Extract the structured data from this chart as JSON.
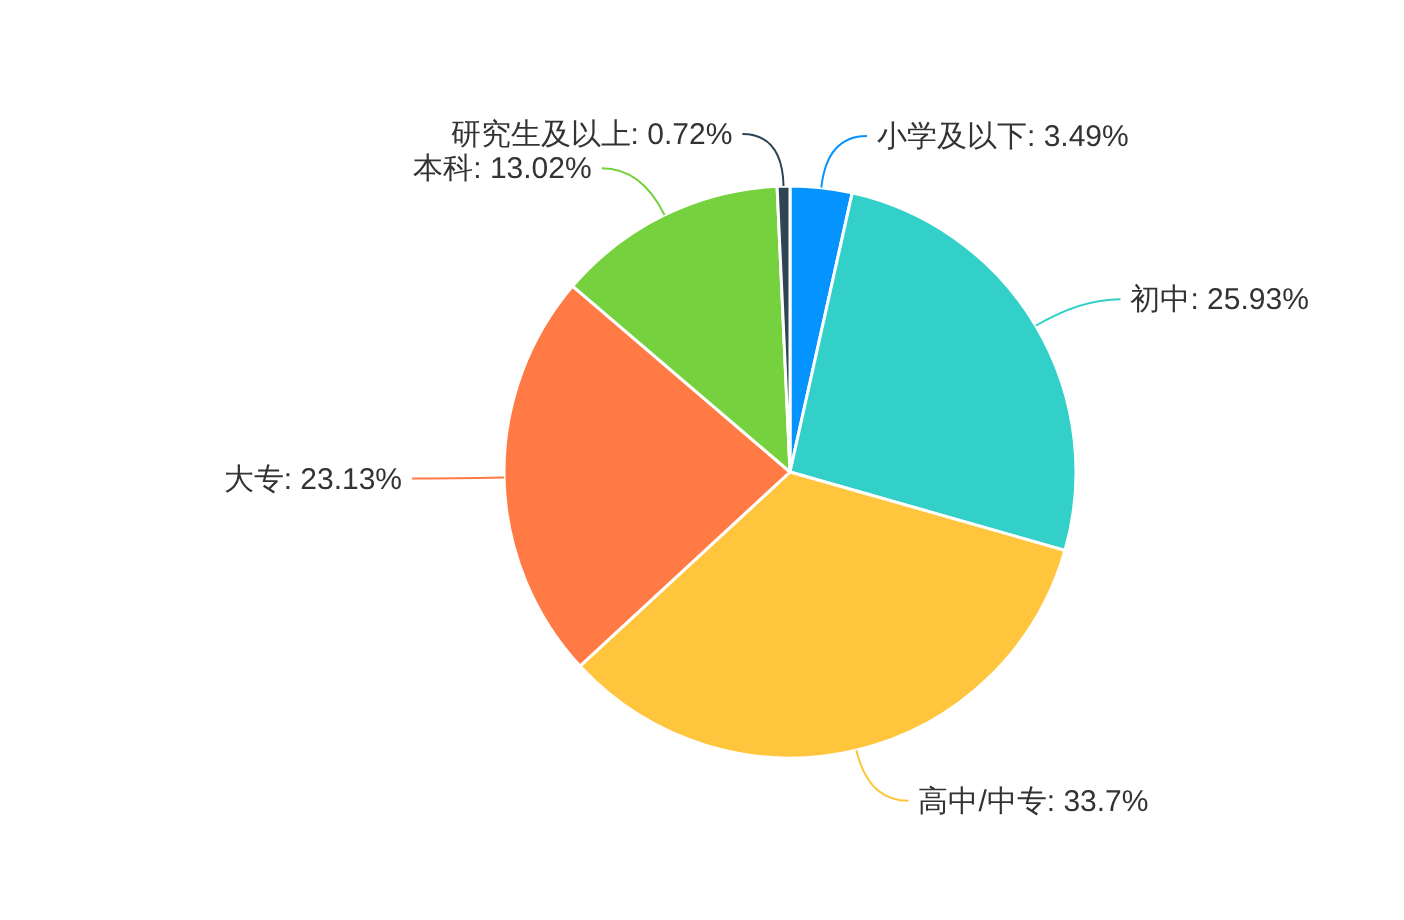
{
  "chart_data": {
    "type": "pie",
    "categories": [
      "小学及以下",
      "初中",
      "高中/中专",
      "大专",
      "本科",
      "研究生及以上"
    ],
    "values": [
      3.49,
      25.93,
      33.7,
      23.13,
      13.02,
      0.72
    ],
    "value_labels": [
      "3.49%",
      "25.93%",
      "33.7%",
      "23.13%",
      "13.02%",
      "0.72%"
    ],
    "colors": [
      "#0593ff",
      "#33d0c9",
      "#ffc53d",
      "#ff7a45",
      "#75d13d",
      "#2f4553"
    ]
  }
}
